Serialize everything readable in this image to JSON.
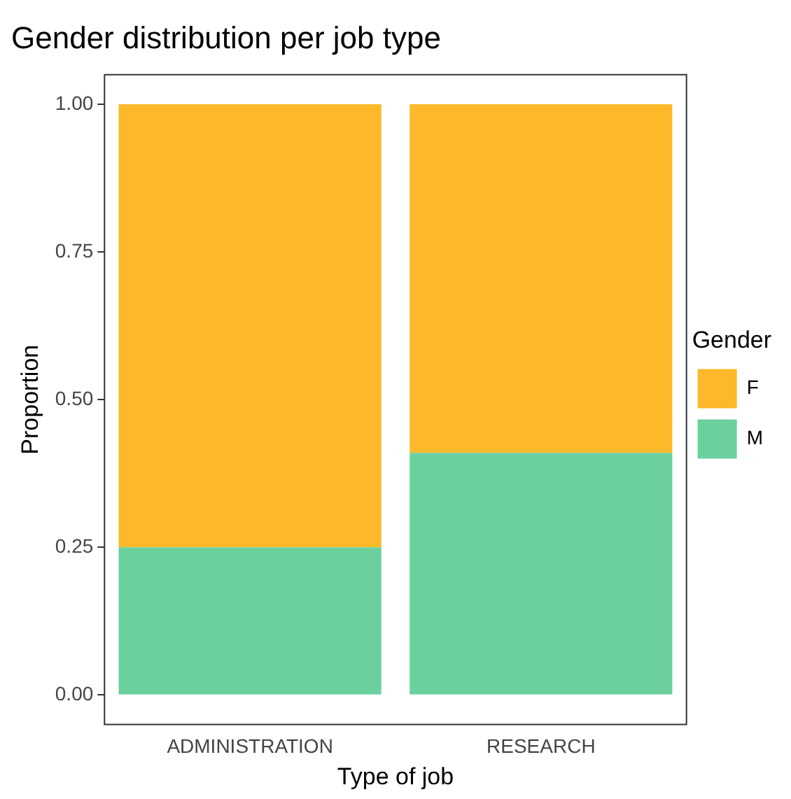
{
  "chart_data": {
    "type": "bar",
    "title": "Gender distribution per job type",
    "xlabel": "Type of job",
    "ylabel": "Proportion",
    "legend_title": "Gender",
    "categories": [
      "ADMINISTRATION",
      "RESEARCH"
    ],
    "stacked": true,
    "series": [
      {
        "name": "M",
        "color": "#6ccf9e",
        "values": [
          0.25,
          0.41
        ]
      },
      {
        "name": "F",
        "color": "#fdb92a",
        "values": [
          0.75,
          0.59
        ]
      }
    ],
    "ylim": [
      -0.05,
      1.05
    ],
    "yticks": [
      {
        "value": 0,
        "label": "0.00"
      },
      {
        "value": 0.25,
        "label": "0.25"
      },
      {
        "value": 0.5,
        "label": "0.50"
      },
      {
        "value": 0.75,
        "label": "0.75"
      },
      {
        "value": 1,
        "label": "1.00"
      }
    ],
    "grid": false,
    "legend": "right"
  }
}
